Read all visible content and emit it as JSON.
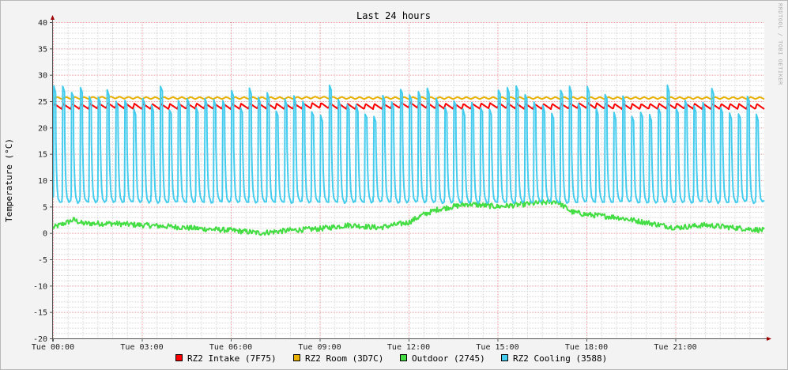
{
  "chart_data": {
    "type": "line",
    "title": "Last 24 hours",
    "ylabel": "Temperature (°C)",
    "xlabel": "",
    "watermark": "RRDTOOL / TOBI OETIKER",
    "ylim": [
      -20,
      40
    ],
    "yticks": [
      -20,
      -15,
      -10,
      -5,
      0,
      5,
      10,
      15,
      20,
      25,
      30,
      35,
      40
    ],
    "xlim_hours": [
      0,
      24
    ],
    "xtick_hours": [
      0,
      3,
      6,
      9,
      12,
      15,
      18,
      21
    ],
    "xtick_labels": [
      "Tue 00:00",
      "Tue 03:00",
      "Tue 06:00",
      "Tue 09:00",
      "Tue 12:00",
      "Tue 15:00",
      "Tue 18:00",
      "Tue 21:00"
    ],
    "grid": true,
    "legend_position": "bottom",
    "colors": {
      "background": "#f3f3f3",
      "canvas": "#ffffff",
      "major_grid": "#e8a0a0",
      "minor_grid": "#d8d8d8",
      "axis": "#555555",
      "arrow": "#a00000"
    },
    "series": [
      {
        "name": "RZ2 Intake (7F75)",
        "color": "#ff0000",
        "hours": [
          0,
          1,
          2,
          3,
          4,
          5,
          6,
          7,
          8,
          9,
          10,
          11,
          12,
          13,
          14,
          15,
          16,
          17,
          18,
          19,
          20,
          21,
          22,
          23,
          24
        ],
        "values": [
          24.0,
          24.0,
          24.2,
          24.0,
          24.0,
          24.1,
          24.0,
          24.1,
          24.0,
          24.2,
          24.0,
          24.0,
          24.3,
          24.1,
          24.0,
          24.2,
          24.0,
          24.0,
          24.2,
          24.0,
          24.0,
          24.1,
          24.0,
          24.0,
          24.0
        ],
        "cycle_amplitude": 1.0
      },
      {
        "name": "RZ2 Room (3D7C)",
        "color": "#e8b000",
        "hours": [
          0,
          1,
          2,
          3,
          4,
          5,
          6,
          7,
          8,
          9,
          10,
          11,
          12,
          13,
          14,
          15,
          16,
          17,
          18,
          19,
          20,
          21,
          22,
          23,
          24
        ],
        "values": [
          25.6,
          25.6,
          25.7,
          25.6,
          25.6,
          25.6,
          25.6,
          25.6,
          25.6,
          25.7,
          25.6,
          25.6,
          25.6,
          25.6,
          25.6,
          25.6,
          25.6,
          25.6,
          25.6,
          25.6,
          25.6,
          25.6,
          25.6,
          25.6,
          25.6
        ],
        "cycle_amplitude": 0.4
      },
      {
        "name": "Outdoor (2745)",
        "color": "#44dd44",
        "hours": [
          0,
          0.7,
          1,
          2,
          3,
          4,
          5,
          6,
          7,
          8,
          9,
          10,
          11,
          12,
          12.5,
          13,
          14,
          15,
          16,
          17,
          17.5,
          18,
          19,
          20,
          21,
          22,
          23,
          24
        ],
        "values": [
          1.0,
          2.5,
          1.8,
          1.8,
          1.5,
          1.2,
          0.8,
          0.5,
          0.0,
          0.5,
          0.8,
          1.5,
          1.0,
          2.0,
          3.5,
          4.5,
          5.5,
          5.0,
          5.5,
          6.0,
          4.0,
          3.5,
          3.0,
          2.0,
          1.0,
          1.5,
          1.0,
          0.5
        ]
      },
      {
        "name": "RZ2 Cooling (3588)",
        "color": "#44ccee",
        "base_value": 5.5,
        "peak_value": 26.0,
        "cycle_count": 80,
        "peak_range": [
          22,
          28
        ]
      }
    ]
  }
}
